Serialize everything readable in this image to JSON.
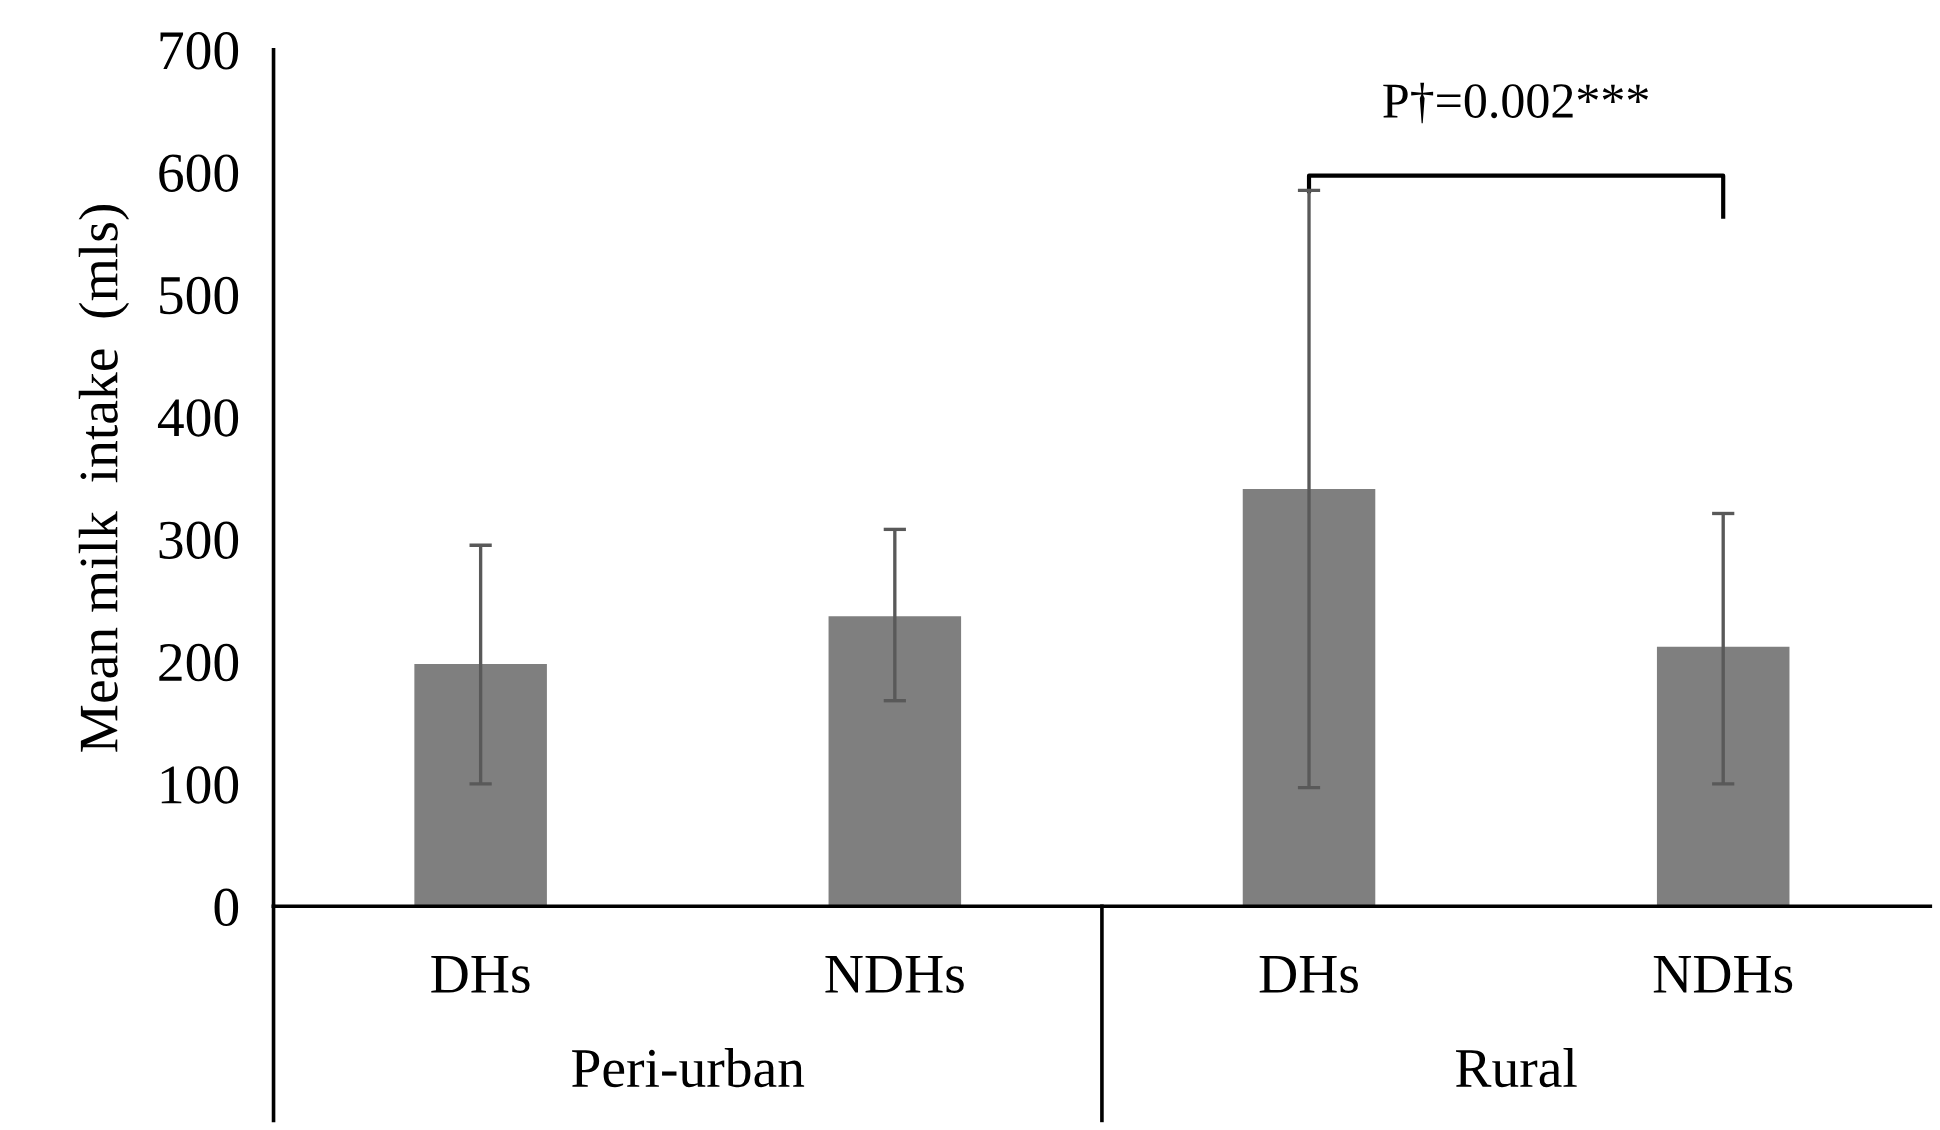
{
  "chart_data": {
    "type": "bar",
    "ylabel": "Mean milk  intake  (mls)",
    "categories": [
      "DHs",
      "NDHs",
      "DHs",
      "NDHs"
    ],
    "values": [
      198,
      237,
      341,
      212
    ],
    "errors": [
      [
        100,
        295
      ],
      [
        168,
        308
      ],
      [
        97,
        585
      ],
      [
        100,
        321
      ]
    ],
    "color": "#7f7f7f",
    "ylim": [
      0,
      700
    ],
    "yticks": [
      0,
      100,
      200,
      300,
      400,
      500,
      600,
      700
    ],
    "grid": false,
    "annotations": [
      "P†=0.002***",
      "Peri-urban",
      "Rural"
    ]
  }
}
